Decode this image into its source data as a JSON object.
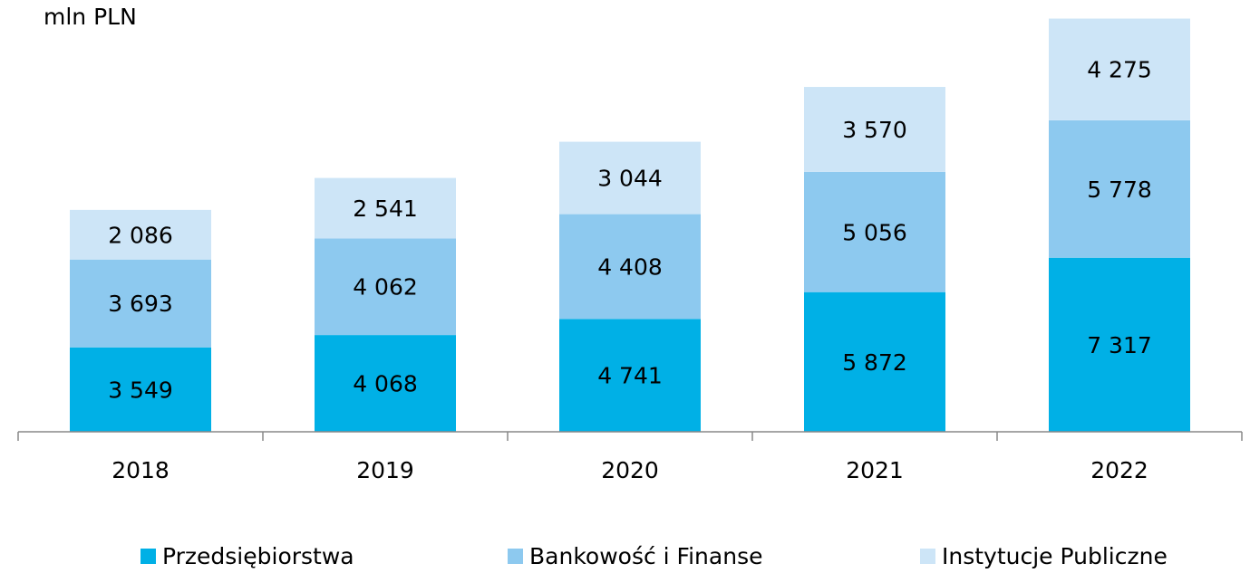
{
  "chart_data": {
    "type": "stacked_bar",
    "y_label": "mln PLN",
    "categories": [
      "2018",
      "2019",
      "2020",
      "2021",
      "2022"
    ],
    "series": [
      {
        "name": "Przedsiębiorstwa",
        "color": "#00b0e6",
        "values": [
          3549,
          4068,
          4741,
          5872,
          7317
        ],
        "value_labels": [
          "3 549",
          "4 068",
          "4 741",
          "5 872",
          "7 317"
        ]
      },
      {
        "name": "Bankowość i Finanse",
        "color": "#8dc9ef",
        "values": [
          3693,
          4062,
          4408,
          5056,
          5778
        ],
        "value_labels": [
          "3 693",
          "4 062",
          "4 408",
          "5 056",
          "5 778"
        ]
      },
      {
        "name": "Instytucje Publiczne",
        "color": "#cde5f7",
        "values": [
          2086,
          2541,
          3044,
          3570,
          4275
        ],
        "value_labels": [
          "2 086",
          "2 541",
          "3 044",
          "3 570",
          "4 275"
        ]
      }
    ],
    "ylim": [
      0,
      18000
    ]
  }
}
